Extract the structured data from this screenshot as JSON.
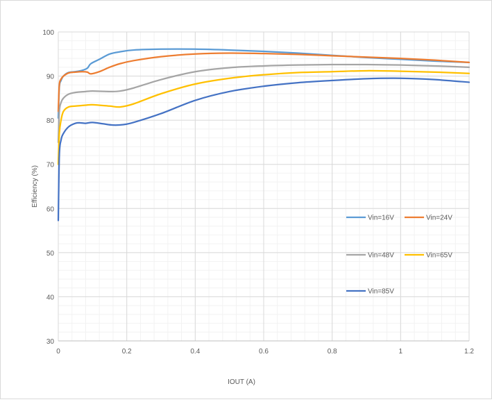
{
  "chart_data": {
    "type": "line",
    "title": "",
    "xlabel": "IOUT (A)",
    "ylabel": "Efficiency (%)",
    "xlim": [
      0,
      1.2
    ],
    "ylim": [
      30,
      100
    ],
    "x_ticks": [
      "0",
      "0.2",
      "0.4",
      "0.6",
      "0.8",
      "1",
      "1.2"
    ],
    "y_ticks": [
      "30",
      "40",
      "50",
      "60",
      "70",
      "80",
      "90",
      "100"
    ],
    "grid": true,
    "minor_grid": true,
    "legend_position": "right-inside",
    "series": [
      {
        "name": "Vin=16V",
        "color": "#5b9bd5",
        "x": [
          0.0,
          0.003,
          0.008,
          0.015,
          0.03,
          0.05,
          0.07,
          0.085,
          0.095,
          0.12,
          0.15,
          0.18,
          0.22,
          0.3,
          0.4,
          0.5,
          0.6,
          0.7,
          0.8,
          0.9,
          1.0,
          1.1,
          1.2
        ],
        "y": [
          80.5,
          87.5,
          89.0,
          90.0,
          90.8,
          91.0,
          91.3,
          91.8,
          92.8,
          93.8,
          95.0,
          95.5,
          95.9,
          96.1,
          96.1,
          95.9,
          95.6,
          95.2,
          94.7,
          94.2,
          93.8,
          93.4,
          93.1
        ]
      },
      {
        "name": "Vin=24V",
        "color": "#ed7d31",
        "x": [
          0.0,
          0.003,
          0.008,
          0.015,
          0.03,
          0.05,
          0.07,
          0.085,
          0.095,
          0.12,
          0.15,
          0.18,
          0.22,
          0.3,
          0.4,
          0.5,
          0.6,
          0.7,
          0.8,
          0.9,
          1.0,
          1.1,
          1.2
        ],
        "y": [
          82.0,
          88.0,
          89.3,
          90.0,
          90.7,
          90.9,
          91.0,
          90.9,
          90.5,
          91.0,
          92.0,
          92.8,
          93.5,
          94.4,
          95.0,
          95.2,
          95.1,
          94.9,
          94.6,
          94.3,
          94.0,
          93.6,
          93.1
        ]
      },
      {
        "name": "Vin=48V",
        "color": "#a5a5a5",
        "x": [
          0.0,
          0.003,
          0.008,
          0.015,
          0.03,
          0.05,
          0.08,
          0.1,
          0.15,
          0.18,
          0.22,
          0.3,
          0.4,
          0.5,
          0.6,
          0.7,
          0.8,
          0.9,
          1.0,
          1.1,
          1.2
        ],
        "y": [
          75.0,
          82.0,
          84.0,
          85.0,
          85.9,
          86.3,
          86.5,
          86.6,
          86.5,
          86.6,
          87.3,
          89.2,
          91.0,
          91.9,
          92.3,
          92.5,
          92.6,
          92.6,
          92.5,
          92.3,
          92.0
        ]
      },
      {
        "name": "Vin=65V",
        "color": "#ffc000",
        "x": [
          0.0,
          0.003,
          0.008,
          0.015,
          0.03,
          0.05,
          0.08,
          0.1,
          0.15,
          0.18,
          0.22,
          0.3,
          0.4,
          0.5,
          0.6,
          0.7,
          0.8,
          0.9,
          1.0,
          1.1,
          1.2
        ],
        "y": [
          70.0,
          77.0,
          80.0,
          82.0,
          83.0,
          83.2,
          83.4,
          83.5,
          83.2,
          83.0,
          83.7,
          86.0,
          88.2,
          89.5,
          90.3,
          90.8,
          91.0,
          91.2,
          91.1,
          90.9,
          90.6
        ]
      },
      {
        "name": "Vin=85V",
        "color": "#4472c4",
        "x": [
          0.0,
          0.003,
          0.008,
          0.015,
          0.03,
          0.05,
          0.065,
          0.08,
          0.1,
          0.13,
          0.16,
          0.19,
          0.22,
          0.3,
          0.4,
          0.5,
          0.6,
          0.7,
          0.8,
          0.9,
          1.0,
          1.1,
          1.2
        ],
        "y": [
          57.3,
          72.0,
          75.5,
          77.0,
          78.5,
          79.3,
          79.4,
          79.3,
          79.5,
          79.2,
          78.9,
          79.0,
          79.5,
          81.5,
          84.5,
          86.5,
          87.7,
          88.5,
          89.0,
          89.4,
          89.5,
          89.2,
          88.6
        ]
      }
    ]
  }
}
